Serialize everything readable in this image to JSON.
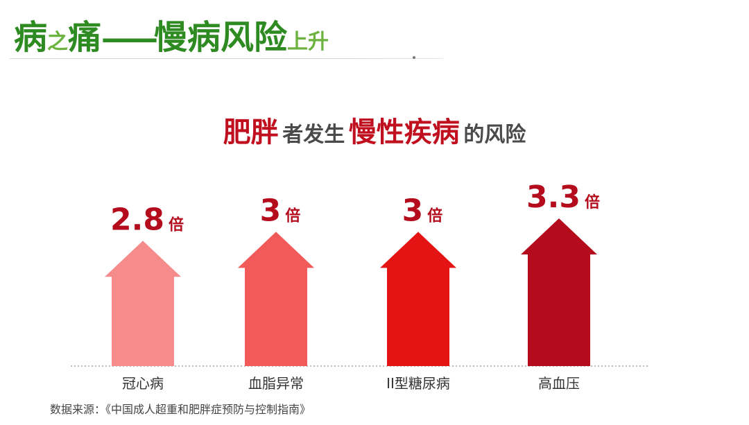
{
  "header": {
    "part1": "病",
    "part2": "之",
    "part3": "痛",
    "dash": "——",
    "part4": "慢病风险",
    "part5": "上升"
  },
  "subtitle": {
    "s1": "肥胖",
    "s2": "者发生",
    "s3": "慢性疾病",
    "s4": "的风险"
  },
  "chart_data": {
    "type": "bar",
    "categories": [
      "冠心病",
      "血脂异常",
      "II型糖尿病",
      "高血压"
    ],
    "values": [
      2.8,
      3,
      3,
      3.3
    ],
    "value_labels": [
      "2.8",
      "3",
      "3",
      "3.3"
    ],
    "unit": "倍",
    "colors": [
      "#f58b8b",
      "#f25a5a",
      "#e41414",
      "#b40c1c"
    ],
    "label_color": "#b40c1c",
    "baseline": "dotted",
    "title": "肥胖者发生慢性疾病的风险"
  },
  "source": "数据来源：《中国成人超重和肥胖症预防与控制指南》"
}
